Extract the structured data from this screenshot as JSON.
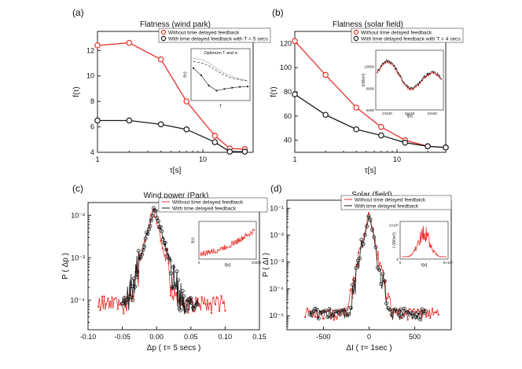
{
  "colors": {
    "red": "#e8322b",
    "black": "#1a1a1a",
    "gray": "#777777"
  },
  "chart_data": [
    {
      "id": "a",
      "type": "line",
      "panel_label": "(a)",
      "title": "Flatness (wind park)",
      "xlabel": "τ[s]",
      "ylabel": "f(τ)",
      "xscale": "log",
      "xlim": [
        1,
        30
      ],
      "ylim": [
        4,
        13.5
      ],
      "xticks": [
        1,
        10
      ],
      "xtick_labels": [
        "1",
        "10"
      ],
      "yticks": [
        4,
        6,
        8,
        10,
        12
      ],
      "ytick_labels": [
        "4",
        "6",
        "8",
        "10",
        "12"
      ],
      "legend_position": "top-right",
      "series": [
        {
          "name": "Without time delayed feedback",
          "color": "red",
          "x": [
            1,
            2,
            4,
            7,
            13,
            18,
            25
          ],
          "y": [
            12.4,
            12.6,
            11.3,
            8.0,
            5.3,
            4.3,
            4.25
          ]
        },
        {
          "name": "With time delayed feedback with T = 5 secs",
          "color": "black",
          "x": [
            1,
            2,
            4,
            7,
            13,
            18,
            25
          ],
          "y": [
            6.5,
            6.5,
            6.2,
            5.8,
            4.8,
            4.05,
            4.05
          ]
        }
      ],
      "inset": {
        "title": "Optimum T and a",
        "xlabel": "T",
        "ylabel": "f(τ)",
        "ylim": [
          0,
          1
        ],
        "series": [
          {
            "name": "curve-1",
            "style": "dotted",
            "x": [
              0,
              1,
              2,
              3,
              4,
              5,
              6,
              7
            ],
            "y": [
              0.95,
              0.93,
              0.85,
              0.72,
              0.6,
              0.52,
              0.46,
              0.42
            ]
          },
          {
            "name": "curve-2",
            "style": "dashed",
            "x": [
              0,
              1,
              2,
              3,
              4,
              5,
              6,
              7
            ],
            "y": [
              0.88,
              0.85,
              0.78,
              0.66,
              0.55,
              0.48,
              0.44,
              0.41
            ]
          },
          {
            "name": "curve-3",
            "style": "markers",
            "x": [
              0,
              1,
              2,
              3,
              4,
              5,
              6,
              7
            ],
            "y": [
              0.72,
              0.55,
              0.3,
              0.18,
              0.22,
              0.25,
              0.27,
              0.28
            ]
          }
        ]
      }
    },
    {
      "id": "b",
      "type": "line",
      "panel_label": "(b)",
      "title": "Flatness (solar field)",
      "xlabel": "τ[s]",
      "ylabel": "f(τ)",
      "xscale": "log",
      "xlim": [
        1,
        30
      ],
      "ylim": [
        30,
        130
      ],
      "xticks": [
        1,
        10
      ],
      "xtick_labels": [
        "1",
        "10"
      ],
      "yticks": [
        40,
        60,
        80,
        100,
        120
      ],
      "ytick_labels": [
        "40",
        "60",
        "80",
        "100",
        "120"
      ],
      "legend_position": "top-right",
      "series": [
        {
          "name": "Without time delayed feedback",
          "color": "red",
          "x": [
            1,
            2,
            4,
            7,
            12,
            20,
            30
          ],
          "y": [
            122,
            94,
            67,
            51,
            40,
            35,
            34
          ]
        },
        {
          "name": "With time delayed feedback with T = 4 secs",
          "color": "black",
          "x": [
            1,
            2,
            4,
            7,
            12,
            20,
            30
          ],
          "y": [
            78,
            61,
            49,
            44,
            38,
            35,
            34
          ]
        }
      ],
      "inset": {
        "xlabel": "t[s]",
        "ylabel": "I(Wm²)",
        "xticks": [
          24120,
          24140,
          24160
        ],
        "xtick_labels": [
          "24120",
          "24140",
          "24160"
        ],
        "yticks": [
          6000,
          8000,
          10000
        ],
        "ytick_labels": [
          "6000",
          "8000",
          "10000"
        ],
        "xlim": [
          24110,
          24170
        ],
        "ylim": [
          6000,
          11500
        ]
      }
    },
    {
      "id": "c",
      "type": "scatter",
      "panel_label": "(c)",
      "title": "Wind power (Park)",
      "xlabel": "Δp ( τ= 5 secs  )",
      "ylabel": "P ( Δp )",
      "yscale": "log",
      "xlim": [
        -0.1,
        0.15
      ],
      "ylim": [
        2e-05,
        0.02
      ],
      "xticks": [
        -0.1,
        -0.05,
        0,
        0.05,
        0.1,
        0.15
      ],
      "xtick_labels": [
        "-0.10",
        "-0.05",
        "0.00",
        "0.05",
        "0.10",
        "0.15"
      ],
      "yticks": [
        0.01,
        0.001,
        0.0001
      ],
      "ytick_labels": [
        "10⁻²",
        "10⁻³",
        "10⁻⁴"
      ],
      "legend_position": "top-right",
      "series": [
        {
          "name": "Without time delayed feedback",
          "color": "red",
          "peak": 0.016,
          "center": -0.005,
          "width": 0.0065,
          "span": [
            -0.085,
            0.1
          ]
        },
        {
          "name": "With time delayed feedback",
          "color": "black",
          "peak": 0.0155,
          "center": -0.003,
          "width": 0.0075,
          "span": [
            -0.05,
            0.06
          ]
        }
      ],
      "inset": {
        "xlabel": "t[s]",
        "ylabel": "f(τ)",
        "xticks": [
          0,
          10000
        ],
        "xtick_labels": [
          "0",
          "10000"
        ],
        "xlim": [
          0,
          10000
        ],
        "ylim": [
          0,
          1
        ]
      }
    },
    {
      "id": "d",
      "type": "scatter",
      "panel_label": "(d)",
      "title": "Solar (field)",
      "xlabel": "ΔI ( τ= 1sec )",
      "ylabel": "P ( ΔI )",
      "yscale": "log",
      "xlim": [
        -900,
        900
      ],
      "ylim": [
        3e-06,
        0.2
      ],
      "xticks": [
        -500,
        0,
        500
      ],
      "xtick_labels": [
        "-500",
        "0",
        "500"
      ],
      "yticks": [
        0.1,
        0.01,
        0.001,
        0.0001,
        1e-05
      ],
      "ytick_labels": [
        "10⁻¹",
        "10⁻²",
        "10⁻³",
        "10⁻⁴",
        "10⁻⁵"
      ],
      "legend_position": "top-right",
      "series": [
        {
          "name": "Without time delayed feedback",
          "color": "red",
          "peak": 0.07,
          "center": 0,
          "width": 28,
          "span": [
            -700,
            760
          ]
        },
        {
          "name": "With time delayed feedback",
          "color": "black",
          "peak": 0.06,
          "center": 0,
          "width": 26,
          "span": [
            -650,
            620
          ]
        }
      ],
      "inset": {
        "xlabel": "t[s]",
        "ylabel": "I (W/m²)",
        "xticks": [
          0,
          50000
        ],
        "xtick_labels": [
          "0",
          "5×10⁴"
        ],
        "yticks": [
          0,
          20000
        ],
        "ytick_labels": [
          "0",
          "2×10⁴"
        ],
        "xlim": [
          0,
          50000
        ],
        "ylim": [
          0,
          22000
        ]
      }
    }
  ]
}
